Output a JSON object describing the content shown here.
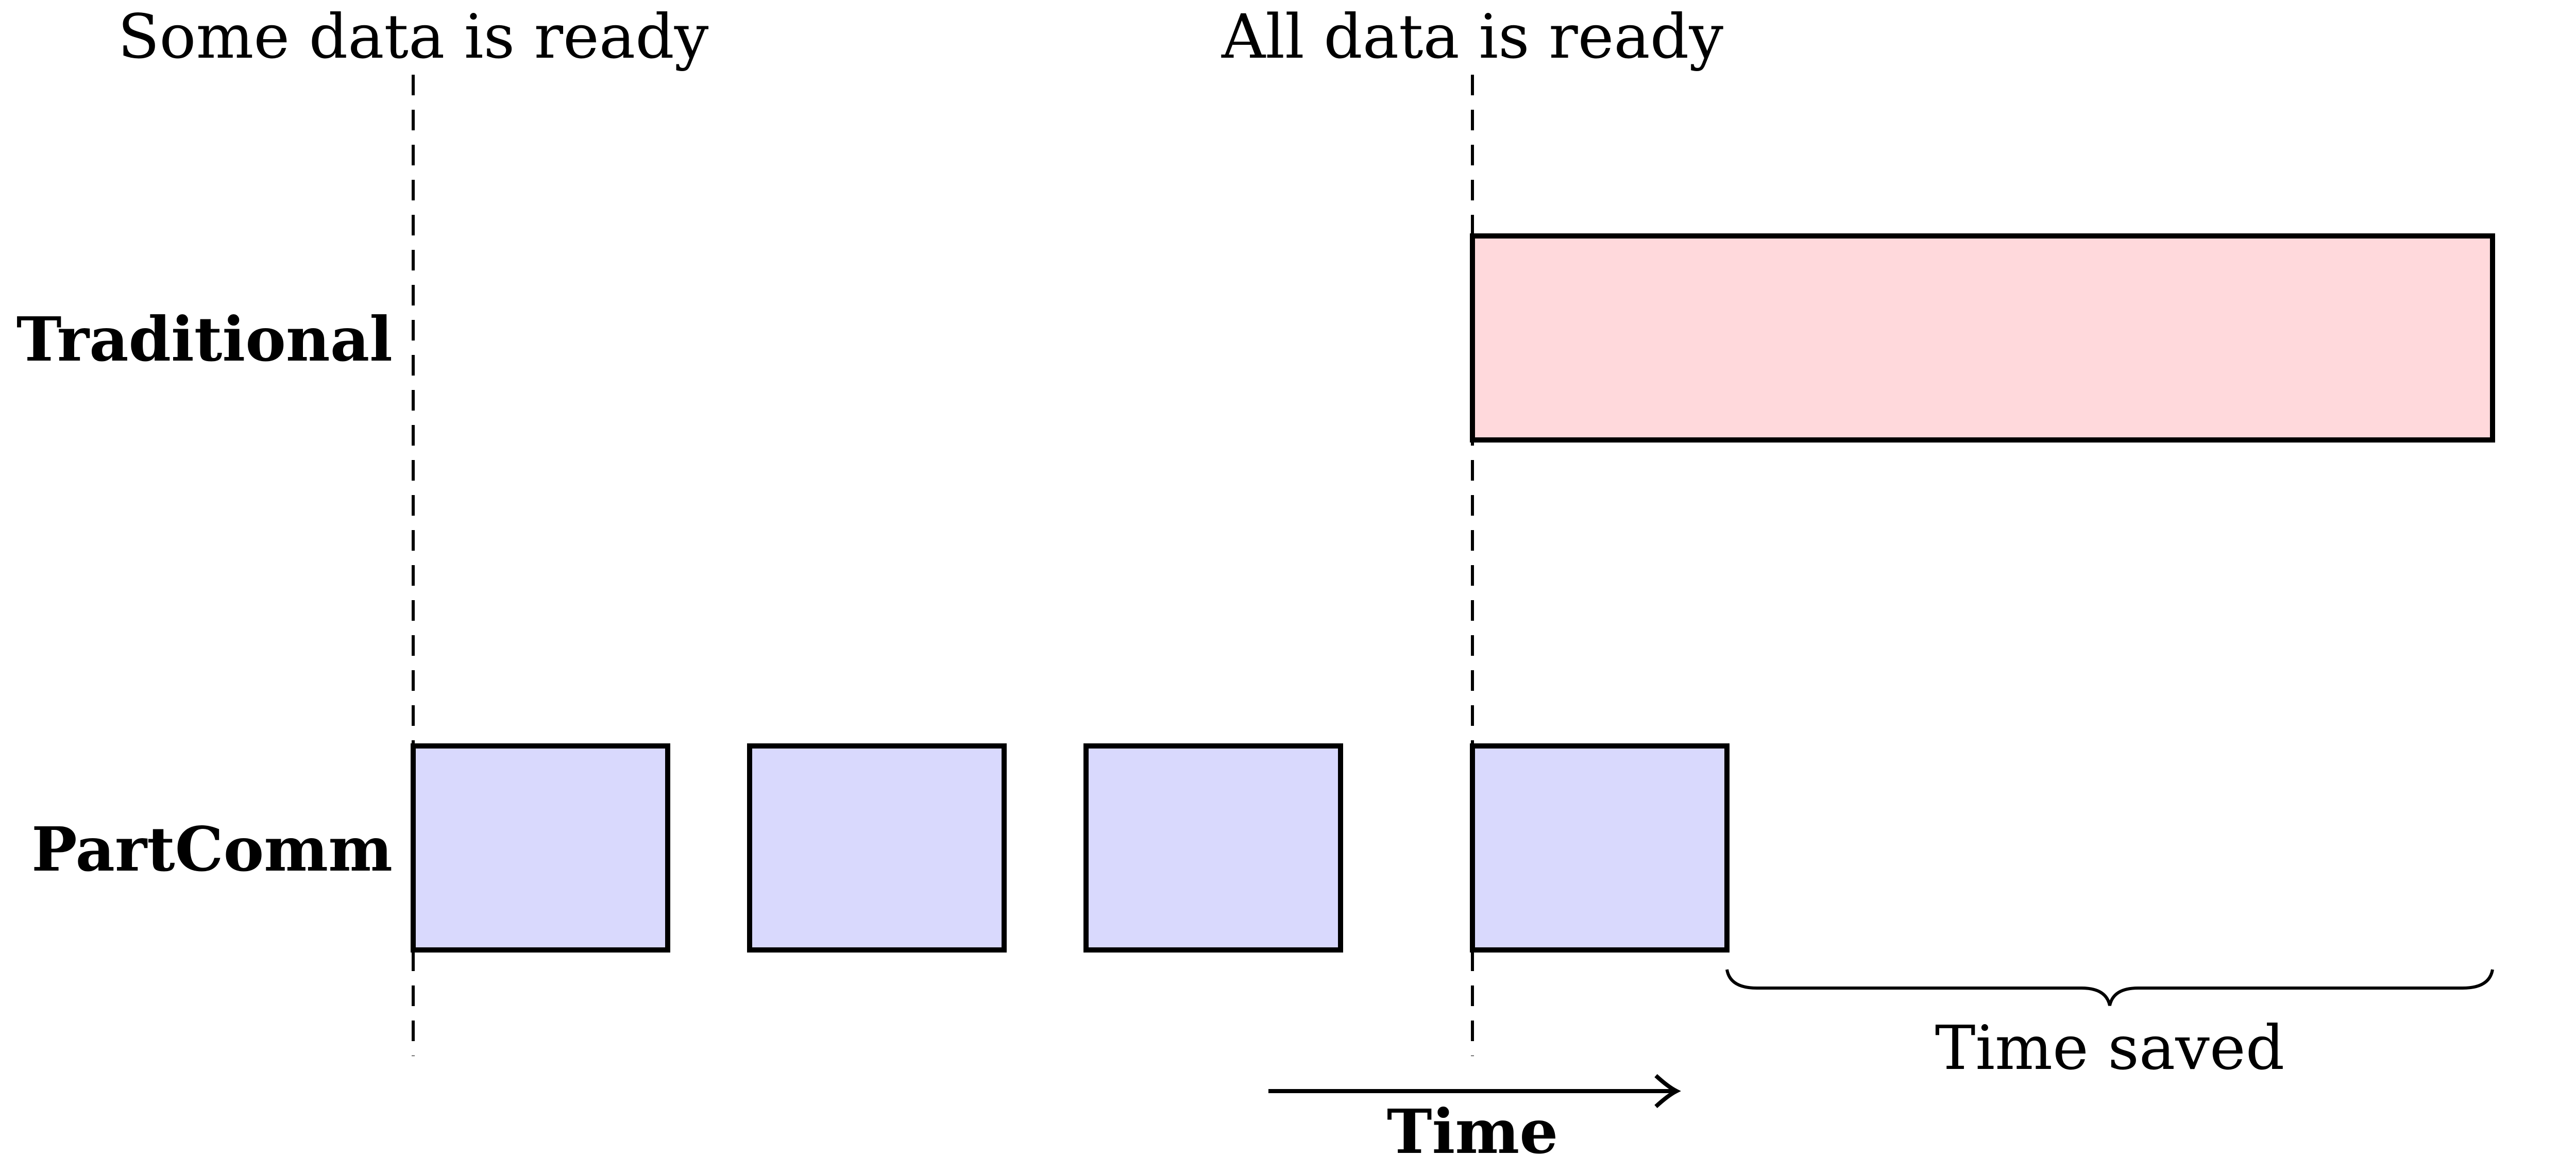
{
  "markers": {
    "some_ready": "Some data is ready",
    "all_ready": "All data is ready"
  },
  "rows": {
    "traditional": "Traditional",
    "partcomm": "PartComm"
  },
  "annotations": {
    "time_saved": "Time saved",
    "time_axis": "Time"
  },
  "colors": {
    "traditional_fill": "#ffd9dc",
    "partcomm_fill": "#d9d9fd",
    "outline": "#000000"
  },
  "blocks": {
    "traditional_count": 1,
    "partcomm_count": 4
  }
}
